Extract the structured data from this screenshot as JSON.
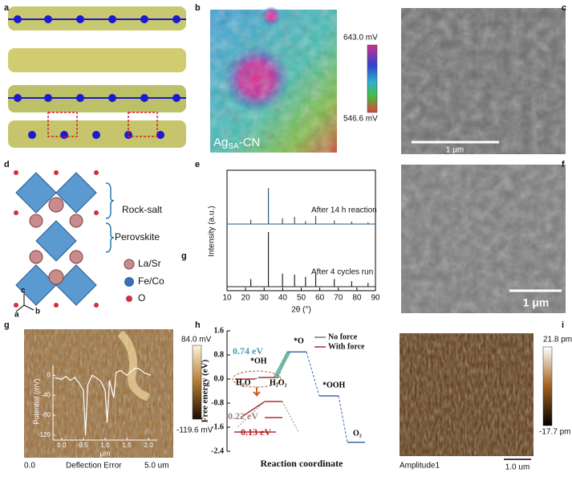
{
  "panels": {
    "a": {
      "label": "a"
    },
    "b": {
      "label": "b",
      "inset_main": "Ag",
      "inset_sub": "SA",
      "inset_rest": "-CN",
      "scale_max": "643.0 mV",
      "scale_min": "546.6 mV"
    },
    "c": {
      "label": "c",
      "scale_bar": "1 μm"
    },
    "d": {
      "label": "d",
      "rock_salt": "Rock-salt",
      "perovskite": "Perovskite",
      "legend": [
        "La/Sr",
        "Fe/Co",
        "O"
      ],
      "axes": [
        "a",
        "b",
        "c"
      ],
      "corner": "g"
    },
    "e": {
      "label": "e",
      "xlabel": "2θ (°)",
      "ylabel": "Intensity (a.u.)",
      "xlim": [
        10,
        90
      ],
      "xticks": [
        10,
        20,
        30,
        40,
        50,
        60,
        70,
        80,
        90
      ],
      "peaks": [
        22.8,
        32.3,
        39.9,
        46.4,
        52.3,
        57.8,
        67.8,
        77.2,
        86.0
      ],
      "traces": [
        {
          "name": "After 14 h reaction",
          "intensities": [
            0.12,
            1.0,
            0.16,
            0.2,
            0.08,
            0.22,
            0.1,
            0.07,
            0.05
          ]
        },
        {
          "name": "After 4 cycles run",
          "intensities": [
            0.14,
            1.0,
            0.24,
            0.22,
            0.18,
            0.24,
            0.14,
            0.1,
            0.07
          ]
        }
      ]
    },
    "f": {
      "label": "f",
      "scale_bar": "1 μm"
    },
    "g": {
      "label": "g",
      "scale_max": "84.0 mV",
      "scale_min": "-119.6 mV",
      "bottom_left": "0.0",
      "bottom_mid": "Deflection Error",
      "bottom_right": "5.0 um",
      "inset_ylabel": "Potential (mV)",
      "inset_xlabel": "μm",
      "inset_xlim": [
        -0.2,
        2.2
      ],
      "inset_ylim": [
        -130,
        20
      ],
      "inset_yticks": [
        0,
        -40,
        -80,
        -120
      ],
      "inset_xticks": [
        {
          "value": 0,
          "label": "0.0"
        },
        {
          "value": 0.5,
          "label": "0.5"
        },
        {
          "value": 1,
          "label": "1.0"
        },
        {
          "value": 1.5,
          "label": "1.5"
        },
        {
          "value": 2,
          "label": "2.0"
        }
      ],
      "inset_x": [
        -0.15,
        0.0,
        0.1,
        0.2,
        0.3,
        0.4,
        0.5,
        0.55,
        0.6,
        0.7,
        0.8,
        0.9,
        1.0,
        1.05,
        1.1,
        1.2,
        1.25,
        1.35,
        1.5,
        1.6,
        1.7,
        1.8,
        1.9,
        2.0,
        2.05
      ],
      "inset_values": [
        -5,
        -8,
        -2,
        -10,
        -4,
        -15,
        -30,
        -120,
        -20,
        0,
        -5,
        -12,
        -30,
        -95,
        -10,
        -45,
        5,
        10,
        0,
        8,
        15,
        12,
        5,
        2,
        0
      ]
    },
    "h": {
      "label": "h",
      "ylabel": "Free energy (eV)",
      "xlabel": "Reaction coordinate",
      "ylim": [
        -2.4,
        1.6
      ],
      "yticks": [
        1.6,
        0.8,
        {
          "value": 0,
          "label": "0.0"
        },
        -0.8,
        -1.6,
        -2.4
      ],
      "legend": [
        "No force",
        "With force"
      ],
      "levels": [
        0,
        0.05,
        0.9,
        -0.56,
        -2.1
      ],
      "annotations": {
        "barrier_top": "0.74 eV",
        "o": "*O",
        "oh": "*OH",
        "h2o": "H₂O",
        "h2o2": "H₂O₂",
        "ooh": "*OOH",
        "o2": "O₂",
        "barrier_no_force": "0.22 eV",
        "barrier_force": "0.13 eV"
      }
    },
    "i": {
      "label": "i",
      "scale_max": "21.8 pm",
      "scale_min": "-17.7 pm",
      "bottom_left": "Amplitude1",
      "scale_bar": "1.0 um"
    }
  }
}
